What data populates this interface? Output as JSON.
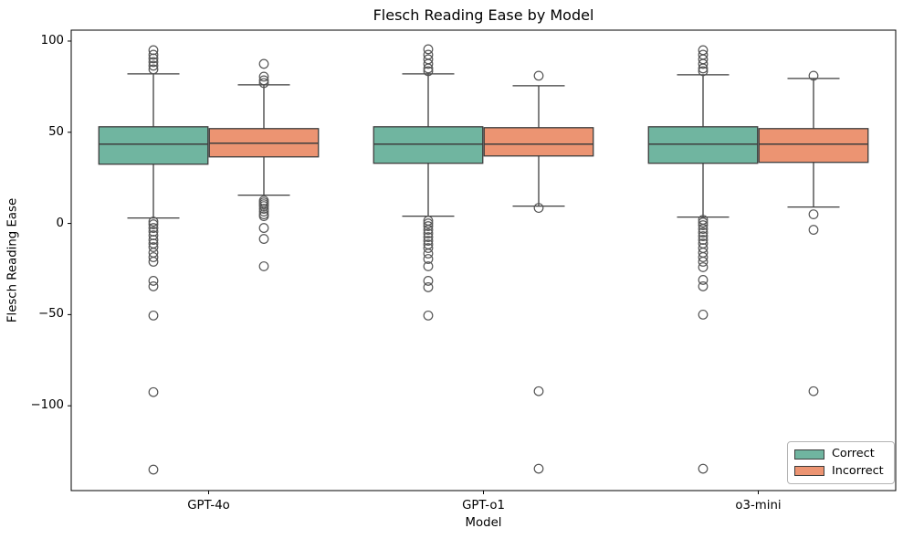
{
  "chart_data": {
    "type": "boxplot",
    "title": "Flesch Reading Ease by Model",
    "xlabel": "Model",
    "ylabel": "Flesch Reading Ease",
    "categories": [
      "GPT-4o",
      "GPT-o1",
      "o3-mini"
    ],
    "y_ticks": [
      {
        "v": 100,
        "label": "100"
      },
      {
        "v": 50,
        "label": "50"
      },
      {
        "v": 0,
        "label": "0"
      },
      {
        "v": -50,
        "label": "−50"
      },
      {
        "v": -100,
        "label": "−100"
      }
    ],
    "ylim": [
      -146.5,
      106
    ],
    "grid": false,
    "legend": {
      "position": "lower right",
      "entries": [
        {
          "label": "Correct",
          "color": "#70b5a0"
        },
        {
          "label": "Incorrect",
          "color": "#ec9472"
        }
      ]
    },
    "styles": {
      "box_edge_color": "#3d3d3d",
      "whisker_color": "#3d3d3d",
      "outlier_edge_color": "#555555",
      "spine_color": "#000000"
    },
    "series": [
      {
        "name": "Correct",
        "color": "#70b5a0",
        "boxes": [
          {
            "category": "GPT-4o",
            "whisker_low": 3,
            "q1": 32.5,
            "median": 43.5,
            "q3": 53,
            "whisker_high": 82,
            "outliers_high": [
              95,
              92.5,
              90.5,
              88.5,
              86.5,
              84.5
            ],
            "outliers_low": [
              1,
              -0.5,
              -2.5,
              -4.5,
              -6.5,
              -9,
              -11,
              -13,
              -16,
              -18.5,
              -21,
              -31.5,
              -34.5,
              -50.5,
              -92.5,
              -135
            ]
          },
          {
            "category": "GPT-o1",
            "whisker_low": 4,
            "q1": 33,
            "median": 43.5,
            "q3": 53,
            "whisker_high": 82,
            "outliers_high": [
              95.5,
              92.5,
              90,
              87.5,
              85,
              83.5
            ],
            "outliers_low": [
              1.5,
              0,
              -1.5,
              -3.5,
              -5.5,
              -7.5,
              -9.5,
              -11.5,
              -13.5,
              -16.5,
              -19.5,
              -23.5,
              -31.5,
              -35,
              -50.5
            ]
          },
          {
            "category": "o3-mini",
            "whisker_low": 3.5,
            "q1": 33,
            "median": 43.5,
            "q3": 53,
            "whisker_high": 81.5,
            "outliers_high": [
              95,
              92.5,
              90,
              87.5,
              85,
              83.5
            ],
            "outliers_low": [
              2,
              0.5,
              -1,
              -3,
              -5,
              -7,
              -9,
              -11,
              -13.5,
              -16,
              -18.5,
              -21,
              -24,
              -31,
              -34.5,
              -50,
              -134.5
            ]
          }
        ]
      },
      {
        "name": "Incorrect",
        "color": "#ec9472",
        "boxes": [
          {
            "category": "GPT-4o",
            "whisker_low": 15.5,
            "q1": 36.5,
            "median": 44,
            "q3": 52,
            "whisker_high": 76,
            "outliers_high": [
              87.5,
              80.5,
              78.5,
              77
            ],
            "outliers_low": [
              12.5,
              11.5,
              10.5,
              9.5,
              8,
              6.5,
              5,
              4,
              -2.5,
              -8.5,
              -23.5
            ]
          },
          {
            "category": "GPT-o1",
            "whisker_low": 9.5,
            "q1": 37,
            "median": 43.5,
            "q3": 52.5,
            "whisker_high": 75.5,
            "outliers_high": [
              81
            ],
            "outliers_low": [
              8.5,
              -92,
              -134.5
            ]
          },
          {
            "category": "o3-mini",
            "whisker_low": 9,
            "q1": 33.5,
            "median": 43.5,
            "q3": 52,
            "whisker_high": 79.5,
            "outliers_high": [
              81
            ],
            "outliers_low": [
              5,
              -3.5,
              -92
            ]
          }
        ]
      }
    ]
  }
}
